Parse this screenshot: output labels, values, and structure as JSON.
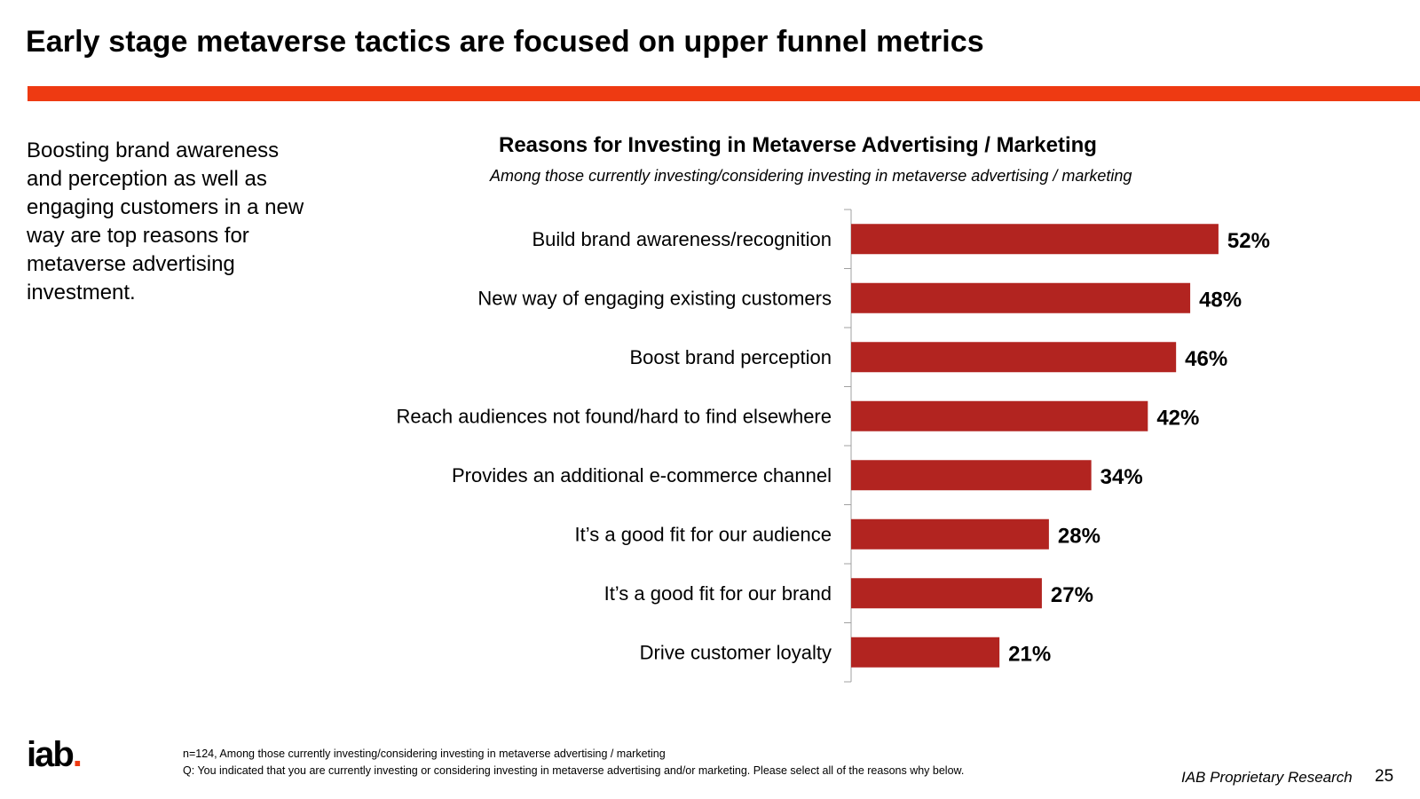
{
  "slide": {
    "title": "Early stage metaverse tactics are focused on upper funnel metrics",
    "lead_text": "Boosting brand awareness and perception as well as engaging customers in a new way are top reasons for metaverse advertising investment.",
    "logo_text": "iab",
    "logo_dot": ".",
    "footnote_line1": "n=124, Among those currently investing/considering investing in metaverse advertising / marketing",
    "footnote_line2": "Q: You indicated that you are currently investing or considering investing in metaverse advertising and/or marketing. Please select all of the reasons why below.",
    "footer_brand": "IAB Proprietary Research",
    "page_number": "25"
  },
  "colors": {
    "accent": "#ee3a12",
    "bar": "#b22420",
    "axis": "#a0a0a0"
  },
  "chart_data": {
    "type": "bar",
    "orientation": "horizontal",
    "title": "Reasons for Investing in Metaverse Advertising / Marketing",
    "subtitle": "Among those currently investing/considering investing in metaverse advertising / marketing",
    "categories": [
      "Build brand awareness/recognition",
      "New way of engaging existing customers",
      "Boost brand perception",
      "Reach audiences not found/hard to find elsewhere",
      "Provides an additional e-commerce channel",
      "It’s a good fit for our audience",
      "It’s a good fit for our brand",
      "Drive customer loyalty"
    ],
    "values": [
      52,
      48,
      46,
      42,
      34,
      28,
      27,
      21
    ],
    "value_labels": [
      "52%",
      "48%",
      "46%",
      "42%",
      "34%",
      "28%",
      "27%",
      "21%"
    ],
    "xlim": [
      0,
      100
    ],
    "grid": false,
    "legend": "none"
  }
}
